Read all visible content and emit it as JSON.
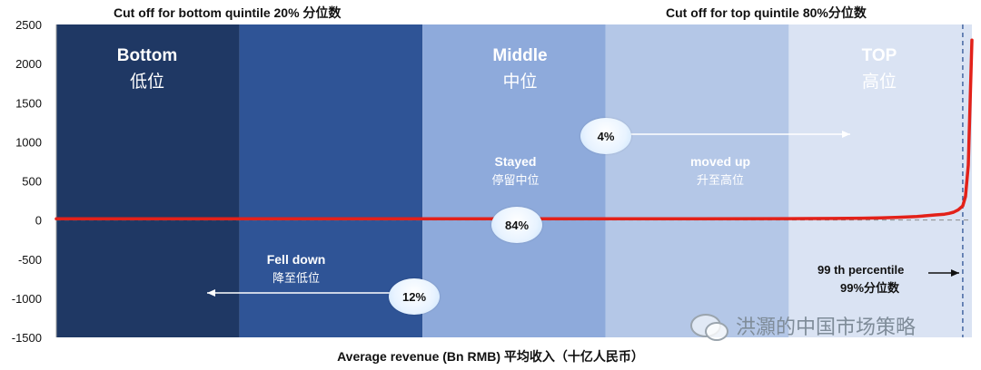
{
  "titles": {
    "bottom_cutoff": "Cut off for bottom quintile 20% 分位数",
    "top_cutoff": "Cut off for top quintile  80%分位数"
  },
  "bands": {
    "bottom": {
      "en": "Bottom",
      "zh": "低位"
    },
    "middle": {
      "en": "Middle",
      "zh": "中位"
    },
    "top": {
      "en": "TOP",
      "zh": "高位"
    }
  },
  "annotations": {
    "stayed": {
      "en": "Stayed",
      "zh": "停留中位",
      "pct": "84%"
    },
    "moved_up": {
      "en": "moved up",
      "zh": "升至高位",
      "pct": "4%"
    },
    "fell_down": {
      "en": "Fell down",
      "zh": "降至低位",
      "pct": "12%"
    },
    "p99": {
      "line1": "99 th percentile",
      "line2": "99%分位数"
    }
  },
  "watermark": "洪灝的中国市场策略",
  "colors": {
    "band1": "#1f3864",
    "band2": "#2f5496",
    "band3": "#8eaadb",
    "band4": "#b4c7e7",
    "band5": "#dae3f3",
    "curve": "#e32119"
  },
  "chart_data": {
    "type": "line",
    "xlabel": "Average revenue (Bn RMB) 平均收入（十亿人民币）",
    "ylabel": "",
    "ylim": [
      -1500,
      2500
    ],
    "yticks": [
      2500,
      2000,
      1500,
      1000,
      500,
      0,
      -500,
      -1000,
      -1500
    ],
    "xlim": [
      0,
      1
    ],
    "grid": false,
    "quintile_cutoffs": [
      0.2,
      0.4,
      0.6,
      0.8
    ],
    "percentile_99": 0.99,
    "series": [
      {
        "x": [
          0,
          0.2,
          0.4,
          0.6,
          0.7,
          0.8,
          0.85,
          0.88,
          0.9,
          0.92,
          0.94,
          0.95,
          0.96,
          0.97,
          0.975,
          0.98,
          0.985,
          0.99,
          0.993,
          0.996,
          0.998,
          1.0
        ],
        "values": [
          15,
          15,
          15,
          15,
          16,
          18,
          20,
          24,
          28,
          35,
          45,
          55,
          65,
          75,
          85,
          100,
          130,
          180,
          300,
          700,
          1500,
          2300
        ]
      }
    ]
  }
}
